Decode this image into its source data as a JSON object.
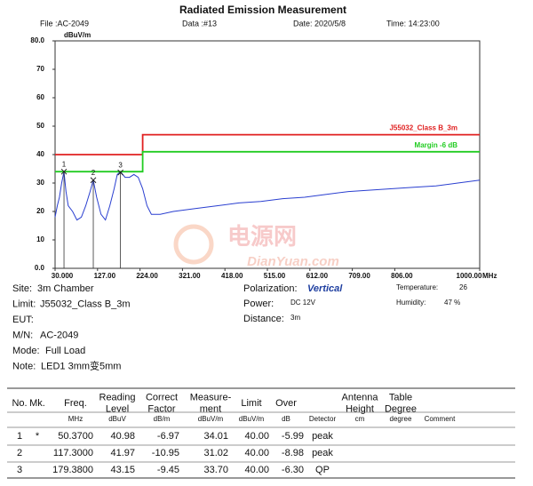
{
  "header": {
    "title": "Radiated Emission Measurement",
    "file": "File :AC-2049",
    "data": "Data :#13",
    "date": "Date: 2020/5/8",
    "time": "Time: 14:23:00"
  },
  "chart_data": {
    "type": "line",
    "y_label": "dBuV/m",
    "x_label": "MHz",
    "xlim": [
      30,
      1000
    ],
    "ylim": [
      0,
      80
    ],
    "xticks": [
      {
        "value": 30,
        "label": "30.000"
      },
      {
        "value": 127,
        "label": "127.00"
      },
      {
        "value": 224,
        "label": "224.00"
      },
      {
        "value": 321,
        "label": "321.00"
      },
      {
        "value": 418,
        "label": "418.00"
      },
      {
        "value": 515,
        "label": "515.00"
      },
      {
        "value": 612,
        "label": "612.00"
      },
      {
        "value": 709,
        "label": "709.00"
      },
      {
        "value": 806,
        "label": "806.00"
      },
      {
        "value": 1000,
        "label": "1000.00"
      }
    ],
    "yticks": [
      {
        "value": 0,
        "label": "0.0"
      },
      10,
      20,
      30,
      40,
      50,
      60,
      70,
      {
        "value": 80,
        "label": "80.0"
      }
    ],
    "grid": false,
    "series": [
      {
        "color": "#2a3fd0",
        "x": [
          30,
          35,
          40,
          45,
          50.37,
          55,
          60,
          70,
          80,
          90,
          100,
          110,
          117.3,
          125,
          135,
          145,
          155,
          165,
          172,
          179.38,
          190,
          200,
          210,
          220,
          230,
          240,
          250,
          270,
          300,
          350,
          400,
          450,
          500,
          550,
          600,
          650,
          700,
          750,
          800,
          850,
          900,
          950,
          1000
        ],
        "values": [
          18,
          22,
          25,
          30,
          34,
          27,
          22,
          20,
          17,
          18,
          22,
          27,
          31,
          25,
          19,
          17,
          22,
          28,
          33,
          34,
          32,
          32,
          33,
          32,
          28,
          22,
          19,
          19,
          20,
          21,
          22,
          23,
          23.5,
          24.5,
          25,
          26,
          27,
          27.5,
          28,
          28.5,
          29,
          30,
          31
        ]
      },
      {
        "name": "J55032_Class B_3m",
        "color": "#e02020",
        "x": [
          30,
          230,
          230,
          1000
        ],
        "values": [
          40,
          40,
          47,
          47
        ]
      },
      {
        "name": "Margin -6 dB",
        "color": "#22cc22",
        "x": [
          30,
          230,
          230,
          1000
        ],
        "values": [
          34,
          34,
          41,
          41
        ]
      }
    ]
  },
  "watermark": {
    "cn": "电源网",
    "en": "DianYuan.com"
  },
  "info_left": [
    {
      "label": "Site:",
      "value": "3m Chamber"
    },
    {
      "label": "Limit:",
      "value": "J55032_Class B_3m"
    },
    {
      "label": "EUT:"
    },
    {
      "label": "M/N:",
      "value": "AC-2049"
    },
    {
      "label": "Mode:",
      "value": "Full Load"
    },
    {
      "label": "Note:",
      "value": "LED1 3mm变5mm"
    }
  ],
  "info_mid": [
    {
      "label": "Polarization:",
      "value": "Vertical"
    },
    {
      "label": "Power:",
      "value": "DC 12V"
    },
    {
      "label": "Distance:",
      "value": "3m"
    }
  ],
  "info_right": [
    {
      "label": "Temperature:",
      "value": "26"
    },
    {
      "label": "Humidity:",
      "value": "47 %"
    }
  ],
  "table": {
    "columns": [
      {
        "title": [
          "No."
        ]
      },
      {
        "title": [
          "Mk."
        ]
      },
      {
        "title": [
          "Freq."
        ],
        "unit": "MHz"
      },
      {
        "title": [
          "Reading",
          "Level"
        ],
        "unit": "dBuV"
      },
      {
        "title": [
          "Correct",
          "Factor"
        ],
        "unit": "dB/m"
      },
      {
        "title": [
          "Measure-",
          "ment"
        ],
        "unit": "dBuV/m"
      },
      {
        "title": [
          "Limit"
        ],
        "unit": "dBuV/m"
      },
      {
        "title": [
          "Over"
        ],
        "unit": "dB"
      },
      {
        "unit": "Detector"
      },
      {
        "title": [
          "Antenna",
          "Height"
        ],
        "unit": "cm"
      },
      {
        "title": [
          "Table",
          "Degree"
        ],
        "unit": "degree"
      },
      {
        "unit": "Comment"
      }
    ],
    "rows": [
      [
        "1",
        "*",
        "50.3700",
        "40.98",
        "-6.97",
        "34.01",
        "40.00",
        "-5.99",
        "peak"
      ],
      [
        "2",
        null,
        "117.3000",
        "41.97",
        "-10.95",
        "31.02",
        "40.00",
        "-8.98",
        "peak"
      ],
      [
        "3",
        null,
        "179.3800",
        "43.15",
        "-9.45",
        "33.70",
        "40.00",
        "-6.30",
        "QP"
      ]
    ]
  }
}
